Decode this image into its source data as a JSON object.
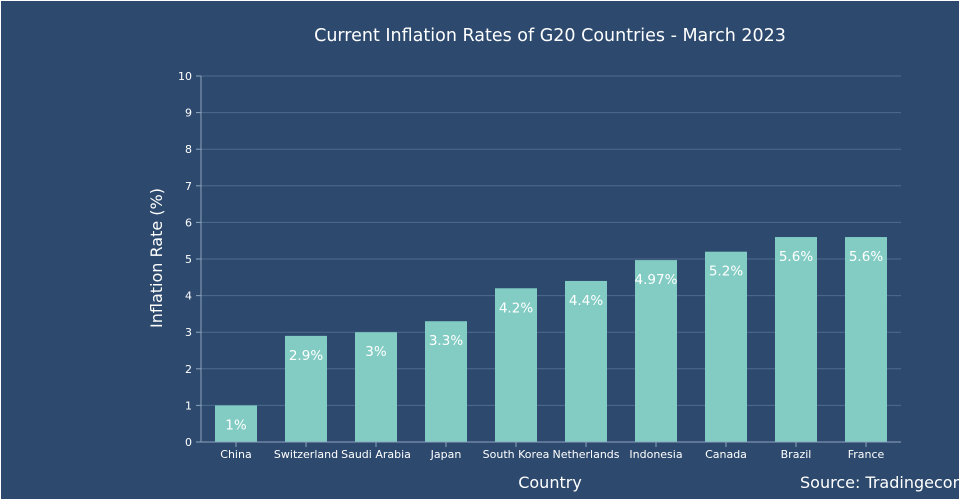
{
  "colors": {
    "background": "#2d4a6e",
    "bar": "#82ccc3",
    "grid": "#4e6a8c",
    "axis": "#8fa4bd",
    "text": "#ffffff"
  },
  "chart_data": {
    "type": "bar",
    "title": "Current Inflation Rates of G20 Countries - March 2023",
    "xlabel": "Country",
    "ylabel": "Inflation Rate (%)",
    "ylim": [
      0,
      10
    ],
    "yticks": [
      "0",
      "1",
      "2",
      "3",
      "4",
      "5",
      "6",
      "7",
      "8",
      "9",
      "10"
    ],
    "grid": true,
    "categories": [
      "China",
      "Switzerland",
      "Saudi Arabia",
      "Japan",
      "South Korea",
      "Netherlands",
      "Indonesia",
      "Canada",
      "Brazil",
      "France"
    ],
    "values": [
      1,
      2.9,
      3,
      3.3,
      4.2,
      4.4,
      4.97,
      5.2,
      5.6,
      5.6
    ],
    "data_labels": [
      "1%",
      "2.9%",
      "3%",
      "3.3%",
      "4.2%",
      "4.4%",
      "4.97%",
      "5.2%",
      "5.6%",
      "5.6%"
    ],
    "annotation": "Source: Tradingeconomics"
  }
}
